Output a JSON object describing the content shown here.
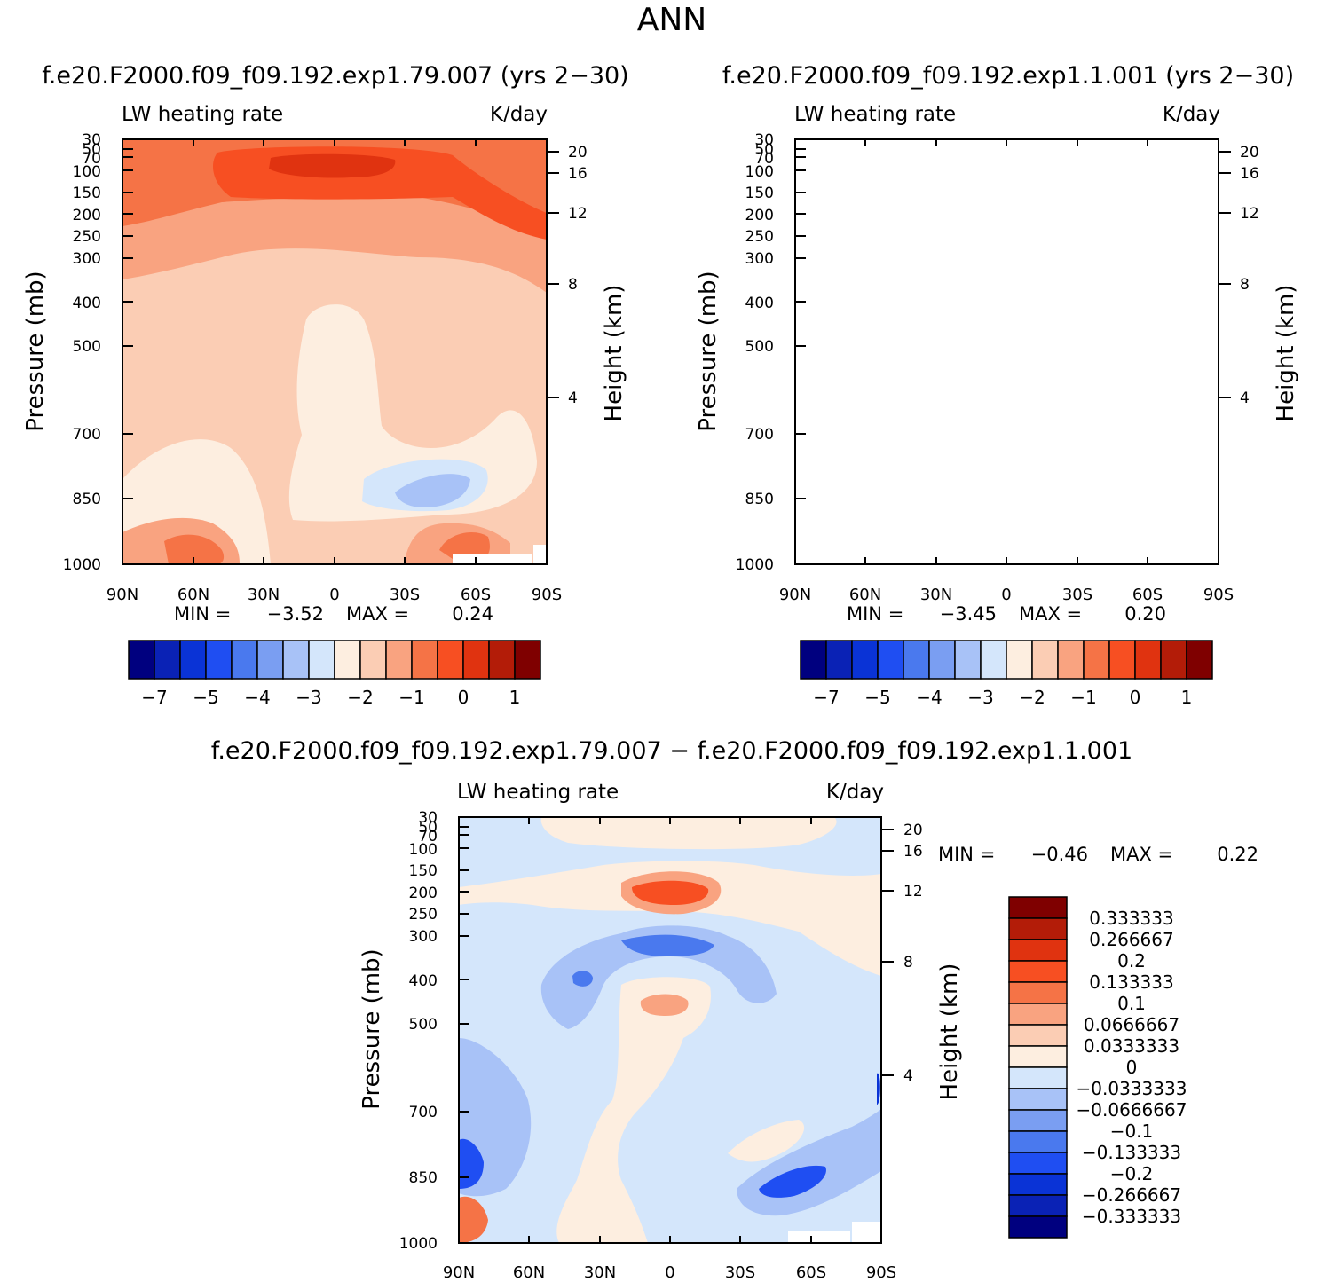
{
  "page_title": "ANN",
  "colors": {
    "scale": [
      "#00007f",
      "#0a22b5",
      "#0a33d6",
      "#1f4ef2",
      "#4a79ee",
      "#7a9ef2",
      "#a8c2f7",
      "#d4e6fb",
      "#fdeee0",
      "#fbcdb4",
      "#f9a380",
      "#f57346",
      "#f74f22",
      "#e03310",
      "#b31c08",
      "#7f0000"
    ]
  },
  "chart_data": [
    {
      "type": "contour",
      "panel": "top-left",
      "case_title": "f.e20.F2000.f09_f09.192.exp1.79.007 (yrs 2−30)",
      "variable": "LW heating rate",
      "units": "K/day",
      "ylabel": "Pressure (mb)",
      "y2label": "Height (km)",
      "x_ticks": [
        "90N",
        "60N",
        "30N",
        "0",
        "30S",
        "60S",
        "90S"
      ],
      "y_ticks": [
        "30",
        "50",
        "70",
        "100",
        "150",
        "200",
        "250",
        "300",
        "400",
        "500",
        "700",
        "850",
        "1000"
      ],
      "y2_ticks": [
        "20",
        "16",
        "12",
        "8",
        "4"
      ],
      "min_label": "MIN =",
      "min_value": "−3.52",
      "max_label": "MAX =",
      "max_value": "0.24",
      "colorbar_labels": [
        "−7",
        "−5",
        "−4",
        "−3",
        "−2",
        "−1",
        "0",
        "1"
      ]
    },
    {
      "type": "contour",
      "panel": "top-right",
      "case_title": "f.e20.F2000.f09_f09.192.exp1.1.001 (yrs 2−30)",
      "variable": "LW heating rate",
      "units": "K/day",
      "ylabel": "Pressure (mb)",
      "y2label": "Height (km)",
      "x_ticks": [
        "90N",
        "60N",
        "30N",
        "0",
        "30S",
        "60S",
        "90S"
      ],
      "y_ticks": [
        "30",
        "50",
        "70",
        "100",
        "150",
        "200",
        "250",
        "300",
        "400",
        "500",
        "700",
        "850",
        "1000"
      ],
      "y2_ticks": [
        "20",
        "16",
        "12",
        "8",
        "4"
      ],
      "min_label": "MIN =",
      "min_value": "−3.45",
      "max_label": "MAX =",
      "max_value": "0.20",
      "colorbar_labels": [
        "−7",
        "−5",
        "−4",
        "−3",
        "−2",
        "−1",
        "0",
        "1"
      ]
    },
    {
      "type": "contour",
      "panel": "bottom-difference",
      "case_title": "f.e20.F2000.f09_f09.192.exp1.79.007 − f.e20.F2000.f09_f09.192.exp1.1.001",
      "variable": "LW heating rate",
      "units": "K/day",
      "ylabel": "Pressure (mb)",
      "y2label": "Height (km)",
      "x_ticks": [
        "90N",
        "60N",
        "30N",
        "0",
        "30S",
        "60S",
        "90S"
      ],
      "y_ticks": [
        "30",
        "50",
        "70",
        "100",
        "150",
        "200",
        "250",
        "300",
        "400",
        "500",
        "700",
        "850",
        "1000"
      ],
      "y2_ticks": [
        "20",
        "16",
        "12",
        "8",
        "4"
      ],
      "min_label": "MIN =",
      "min_value": "−0.46",
      "max_label": "MAX =",
      "max_value": "0.22",
      "colorbar_labels": [
        "0.333333",
        "0.266667",
        "0.2",
        "0.133333",
        "0.1",
        "0.0666667",
        "0.0333333",
        "0",
        "−0.0333333",
        "−0.0666667",
        "−0.1",
        "−0.133333",
        "−0.2",
        "−0.266667",
        "−0.333333"
      ]
    }
  ]
}
